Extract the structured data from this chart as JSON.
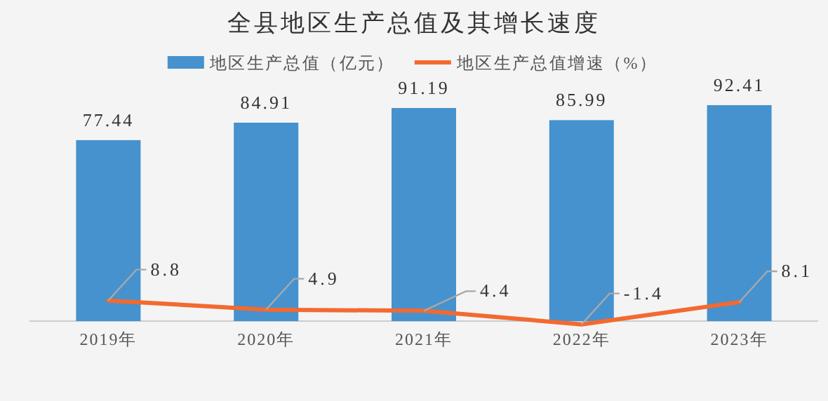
{
  "chart_data": {
    "type": "bar",
    "title": "全县地区生产总值及其增长速度",
    "categories": [
      "2019年",
      "2020年",
      "2021年",
      "2022年",
      "2023年"
    ],
    "series": [
      {
        "name": "地区生产总值（亿元）",
        "type": "bar",
        "color": "#4592cf",
        "values": [
          77.44,
          84.91,
          91.19,
          85.99,
          92.41
        ]
      },
      {
        "name": "地区生产总值增速（%）",
        "type": "line",
        "color": "#f26a30",
        "values": [
          8.8,
          4.9,
          4.4,
          -1.4,
          8.1
        ]
      }
    ],
    "data_labels": true,
    "legend": "top",
    "marker": "none",
    "line_style": "solid"
  }
}
